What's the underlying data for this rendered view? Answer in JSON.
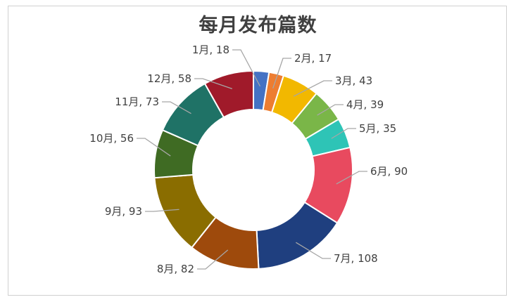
{
  "chart_data": {
    "type": "donut",
    "title": "每月发布篇数",
    "categories": [
      "1月",
      "2月",
      "3月",
      "4月",
      "5月",
      "6月",
      "7月",
      "8月",
      "9月",
      "10月",
      "11月",
      "12月"
    ],
    "values": [
      18,
      17,
      43,
      39,
      35,
      90,
      108,
      82,
      93,
      56,
      73,
      58
    ],
    "labels": [
      "1月, 18",
      "2月, 17",
      "3月, 43",
      "4月, 39",
      "5月, 35",
      "6月, 90",
      "7月, 108",
      "8月, 82",
      "9月, 93",
      "10月, 56",
      "11月, 73",
      "12月, 58"
    ],
    "colors": [
      "#4472c4",
      "#ed7d31",
      "#f2b800",
      "#7ab648",
      "#2ec4b6",
      "#e84a5f",
      "#1f3f7f",
      "#9e4a0c",
      "#8a6d00",
      "#3f6b23",
      "#1f7266",
      "#a01a2a"
    ],
    "legend": "none",
    "data_labels": "outside with leader lines"
  }
}
